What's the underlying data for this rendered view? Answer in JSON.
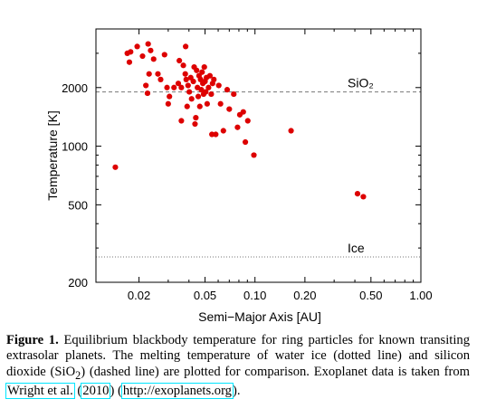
{
  "chart_data": {
    "type": "scatter",
    "xlabel": "Semi−Major Axis [AU]",
    "ylabel": "Temperature [K]",
    "x_scale": "log",
    "y_scale": "log",
    "xlim": [
      0.011,
      1.0
    ],
    "ylim": [
      200,
      4000
    ],
    "x_ticks": [
      {
        "value": 0.02,
        "label": "0.02"
      },
      {
        "value": 0.05,
        "label": "0.05"
      },
      {
        "value": 0.1,
        "label": "0.10"
      },
      {
        "value": 0.2,
        "label": "0.20"
      },
      {
        "value": 0.5,
        "label": "0.50"
      },
      {
        "value": 1.0,
        "label": "1.00"
      }
    ],
    "y_ticks": [
      {
        "value": 200,
        "label": "200"
      },
      {
        "value": 500,
        "label": "500"
      },
      {
        "value": 1000,
        "label": "1000"
      },
      {
        "value": 2000,
        "label": "2000"
      }
    ],
    "reference_lines": [
      {
        "label": "SiO₂",
        "value": 1900,
        "style": "dashed"
      },
      {
        "label": "Ice",
        "value": 270,
        "style": "dotted"
      }
    ],
    "marker_color": "#dd0000",
    "points": [
      [
        0.0144,
        780
      ],
      [
        0.017,
        3000
      ],
      [
        0.0175,
        2700
      ],
      [
        0.0178,
        3050
      ],
      [
        0.0195,
        3250
      ],
      [
        0.021,
        2900
      ],
      [
        0.022,
        2050
      ],
      [
        0.0225,
        1870
      ],
      [
        0.0227,
        3350
      ],
      [
        0.023,
        2350
      ],
      [
        0.0235,
        3100
      ],
      [
        0.0245,
        2800
      ],
      [
        0.026,
        2350
      ],
      [
        0.027,
        2200
      ],
      [
        0.0285,
        2950
      ],
      [
        0.0295,
        2000
      ],
      [
        0.03,
        1650
      ],
      [
        0.0305,
        1800
      ],
      [
        0.0325,
        2000
      ],
      [
        0.0345,
        2100
      ],
      [
        0.035,
        2750
      ],
      [
        0.036,
        2000
      ],
      [
        0.036,
        1350
      ],
      [
        0.037,
        2600
      ],
      [
        0.038,
        2350
      ],
      [
        0.0382,
        3250
      ],
      [
        0.0385,
        2200
      ],
      [
        0.039,
        1600
      ],
      [
        0.0395,
        2050
      ],
      [
        0.0402,
        1900
      ],
      [
        0.041,
        2250
      ],
      [
        0.0415,
        1750
      ],
      [
        0.0425,
        2150
      ],
      [
        0.043,
        2550
      ],
      [
        0.0435,
        1300
      ],
      [
        0.044,
        1400
      ],
      [
        0.0445,
        2450
      ],
      [
        0.045,
        2000
      ],
      [
        0.0455,
        1800
      ],
      [
        0.046,
        2300
      ],
      [
        0.0465,
        1600
      ],
      [
        0.047,
        2200
      ],
      [
        0.0475,
        1950
      ],
      [
        0.048,
        2400
      ],
      [
        0.0485,
        2100
      ],
      [
        0.049,
        1850
      ],
      [
        0.0495,
        2550
      ],
      [
        0.05,
        2150
      ],
      [
        0.0505,
        1900
      ],
      [
        0.051,
        2250
      ],
      [
        0.0515,
        1650
      ],
      [
        0.0525,
        2000
      ],
      [
        0.0535,
        2300
      ],
      [
        0.0545,
        1850
      ],
      [
        0.055,
        1150
      ],
      [
        0.0555,
        2100
      ],
      [
        0.0565,
        2200
      ],
      [
        0.058,
        1150
      ],
      [
        0.0605,
        2050
      ],
      [
        0.062,
        1650
      ],
      [
        0.0645,
        1200
      ],
      [
        0.068,
        1950
      ],
      [
        0.07,
        1550
      ],
      [
        0.0745,
        1850
      ],
      [
        0.0785,
        1250
      ],
      [
        0.081,
        1450
      ],
      [
        0.085,
        1500
      ],
      [
        0.0875,
        1050
      ],
      [
        0.0905,
        1350
      ],
      [
        0.0985,
        900
      ],
      [
        0.165,
        1200
      ],
      [
        0.415,
        570
      ],
      [
        0.45,
        550
      ]
    ]
  },
  "caption": {
    "label": "Figure 1.",
    "part1": "Equilibrium blackbody temperature for ring particles for known transiting extrasolar planets.  The melting temperature of water ice (dotted line) and silicon dioxide (SiO",
    "sub": "2",
    "part2": ") (dashed line) are plotted for comparison.  Exoplanet data is taken from ",
    "cite_author": "Wright et al.",
    "cite_mid": " (",
    "cite_year": "2010",
    "cite_end": ") (",
    "url": "http://exoplanets.org",
    "tail": ")."
  }
}
